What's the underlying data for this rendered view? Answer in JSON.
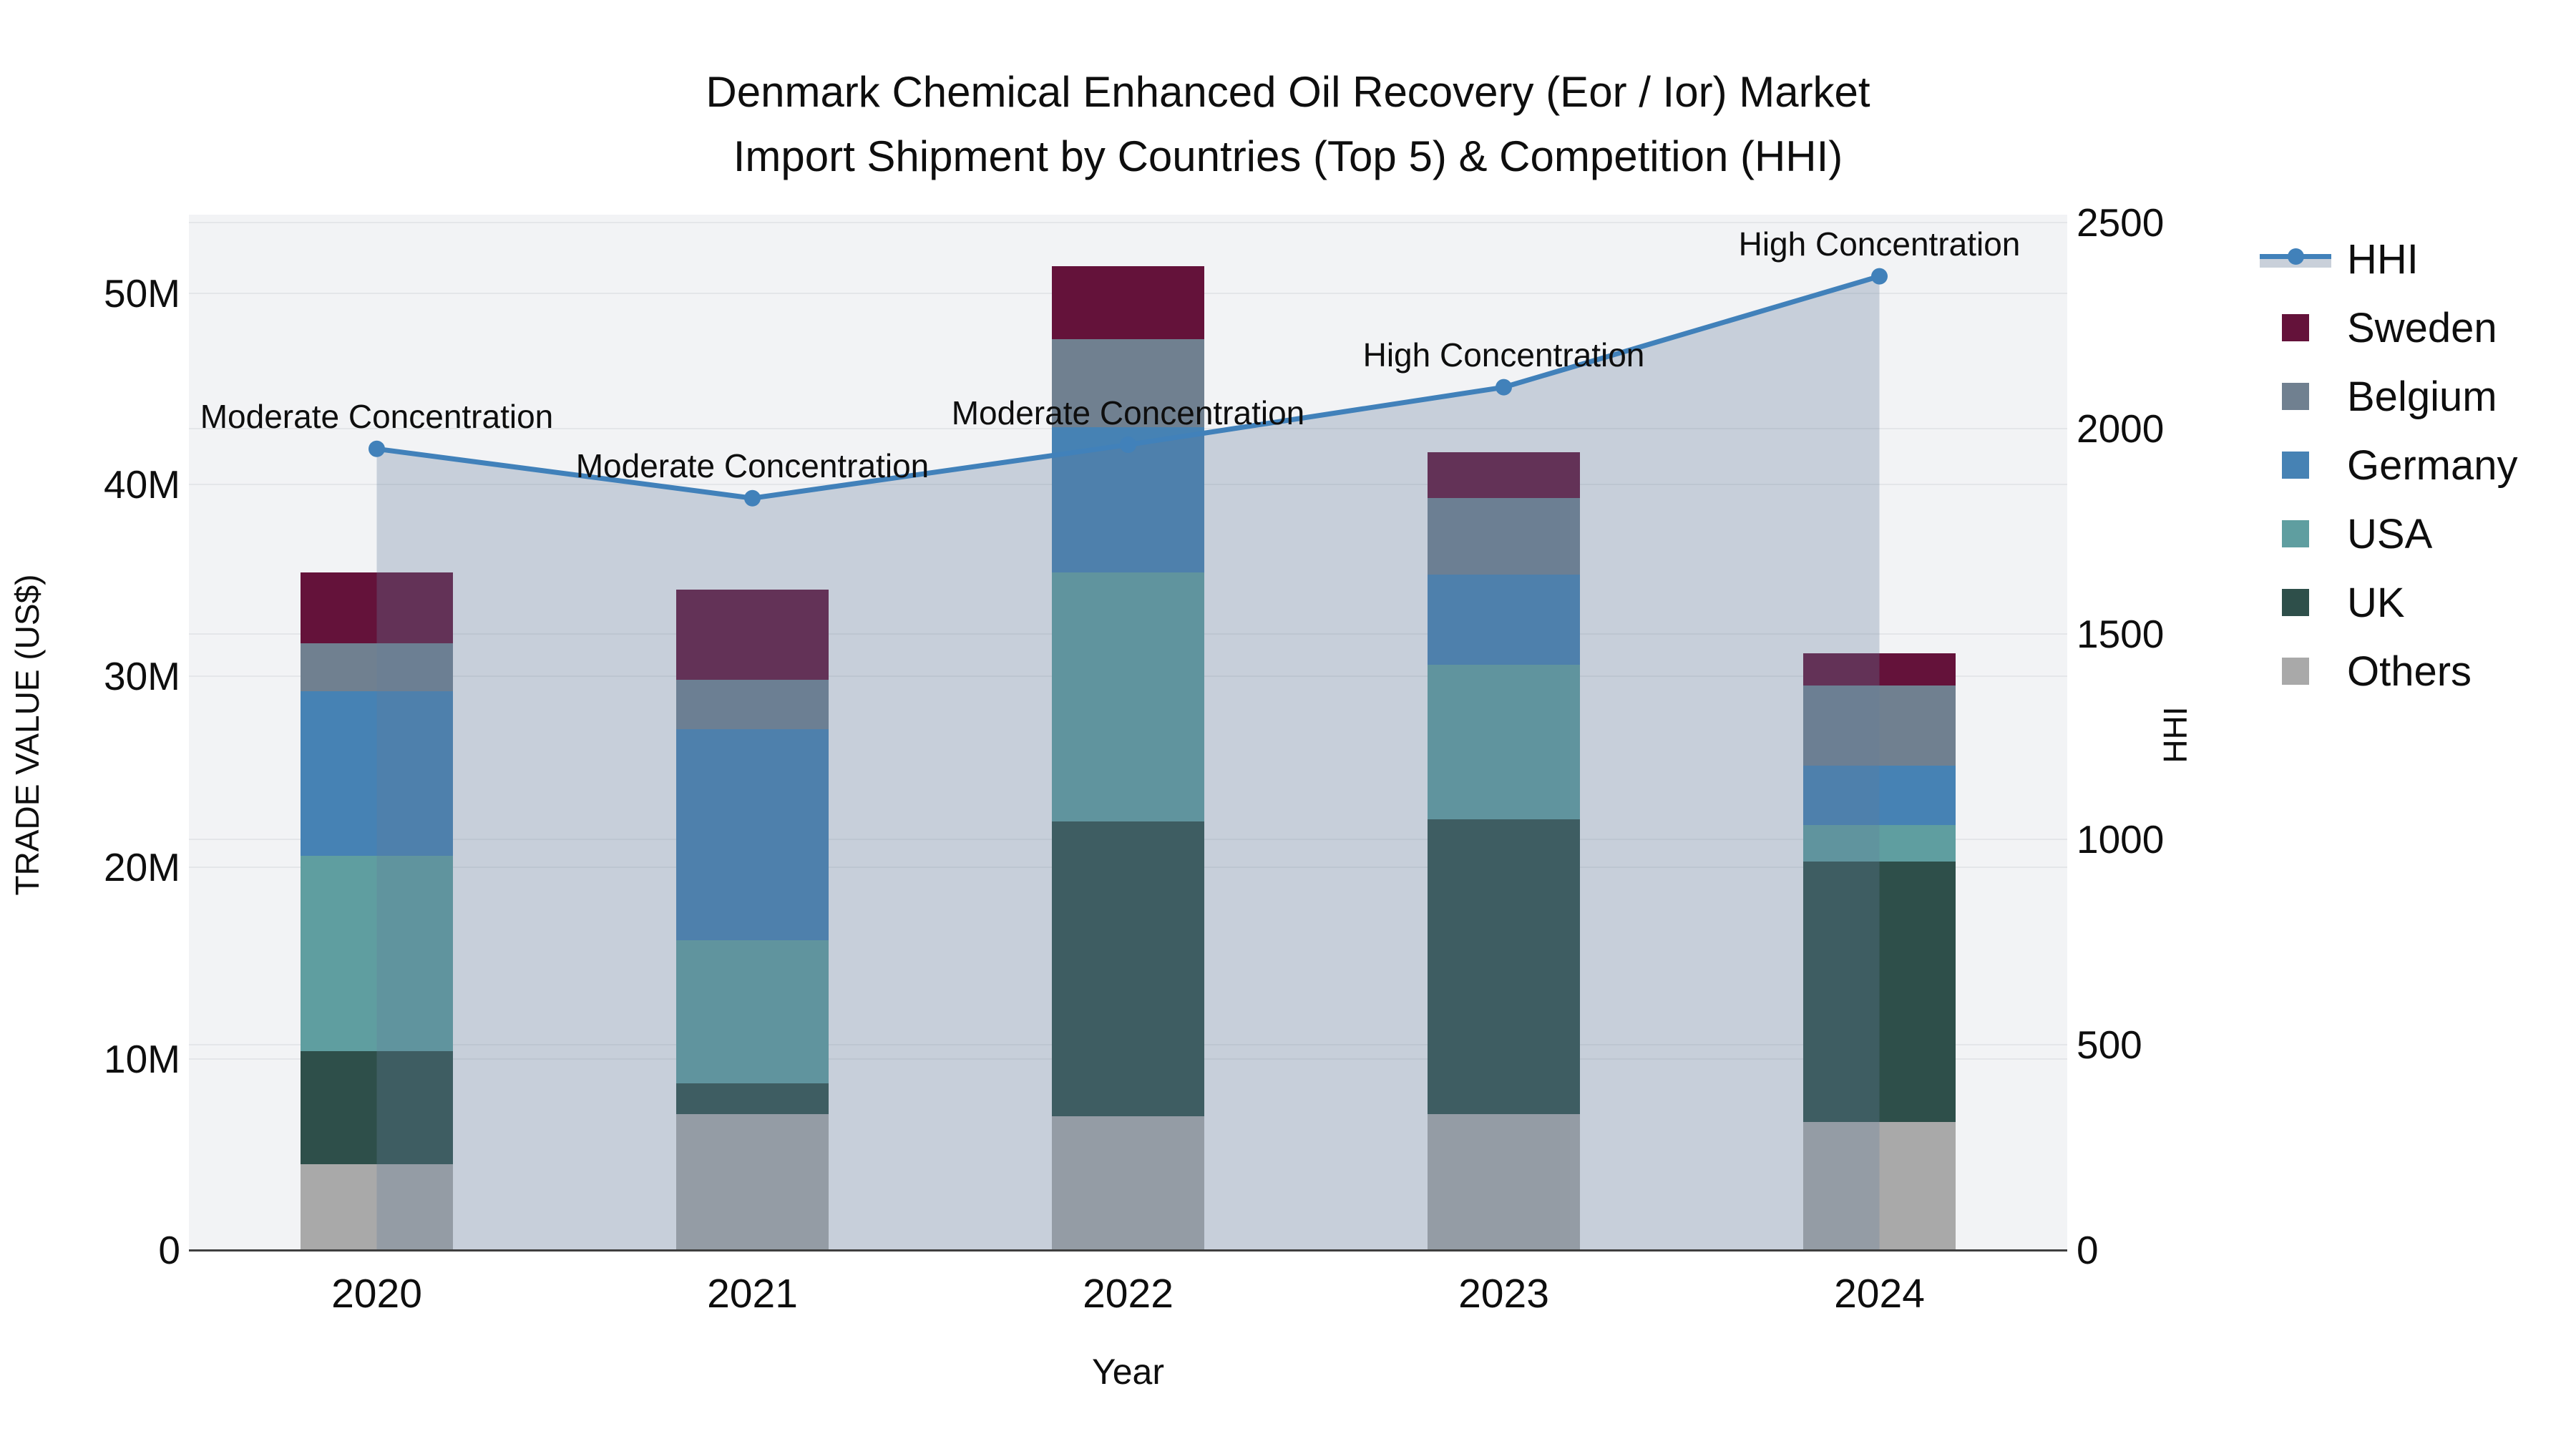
{
  "chart_data": {
    "type": "bar",
    "title_line1": "Denmark Chemical Enhanced Oil Recovery (Eor / Ior) Market",
    "title_line2": "Import Shipment by Countries (Top 5) & Competition (HHI)",
    "xlabel": "Year",
    "ylabel_left": "TRADE VALUE (US$)",
    "ylabel_right": "HHI",
    "categories": [
      "2020",
      "2021",
      "2022",
      "2023",
      "2024"
    ],
    "stacked": true,
    "grid": true,
    "legend_position": "right",
    "ylim_left_millions": [
      0,
      54.1
    ],
    "ylim_right": [
      0,
      2520
    ],
    "yticks_left": [
      {
        "value": 0,
        "label": "0"
      },
      {
        "value": 10,
        "label": "10M"
      },
      {
        "value": 20,
        "label": "20M"
      },
      {
        "value": 30,
        "label": "30M"
      },
      {
        "value": 40,
        "label": "40M"
      },
      {
        "value": 50,
        "label": "50M"
      }
    ],
    "yticks_right": [
      {
        "value": 0,
        "label": "0"
      },
      {
        "value": 500,
        "label": "500"
      },
      {
        "value": 1000,
        "label": "1000"
      },
      {
        "value": 1500,
        "label": "1500"
      },
      {
        "value": 2000,
        "label": "2000"
      },
      {
        "value": 2500,
        "label": "2500"
      }
    ],
    "series": [
      {
        "name": "Sweden",
        "color": "#64123a",
        "values_millions": [
          3.7,
          4.7,
          3.8,
          2.4,
          1.7
        ]
      },
      {
        "name": "Belgium",
        "color": "#708090",
        "values_millions": [
          2.5,
          2.6,
          4.6,
          4.0,
          4.2
        ]
      },
      {
        "name": "Germany",
        "color": "#4682b4",
        "values_millions": [
          8.6,
          11.0,
          7.6,
          4.7,
          3.1
        ]
      },
      {
        "name": "USA",
        "color": "#5f9ea0",
        "values_millions": [
          10.2,
          7.5,
          13.0,
          8.1,
          1.9
        ]
      },
      {
        "name": "UK",
        "color": "#2e4f4a",
        "values_millions": [
          5.9,
          1.6,
          15.4,
          15.4,
          13.6
        ]
      },
      {
        "name": "Others",
        "color": "#a9a9a9",
        "values_millions": [
          4.5,
          7.1,
          7.0,
          7.1,
          6.7
        ]
      }
    ],
    "hhi_line": {
      "name": "HHI",
      "color": "#4181ba",
      "fill_color_rgba": "rgba(100,125,155,0.30)",
      "values": [
        1950,
        1830,
        1960,
        2100,
        2370
      ],
      "annotations": [
        "Moderate Concentration",
        "Moderate Concentration",
        "Moderate Concentration",
        "High Concentration",
        "High Concentration"
      ]
    },
    "legend_entries": [
      "HHI",
      "Sweden",
      "Belgium",
      "Germany",
      "USA",
      "UK",
      "Others"
    ]
  }
}
